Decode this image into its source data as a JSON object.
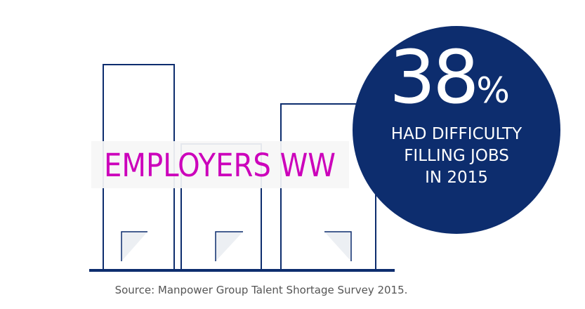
{
  "stat": {
    "number": "38",
    "unit": "%",
    "lines": [
      "HAD DIFFICULTY",
      "FILLING JOBS",
      "IN 2015"
    ]
  },
  "label": "EMPLOYERS WW",
  "source": "Source: Manpower Group Talent Shortage Survey 2015."
}
